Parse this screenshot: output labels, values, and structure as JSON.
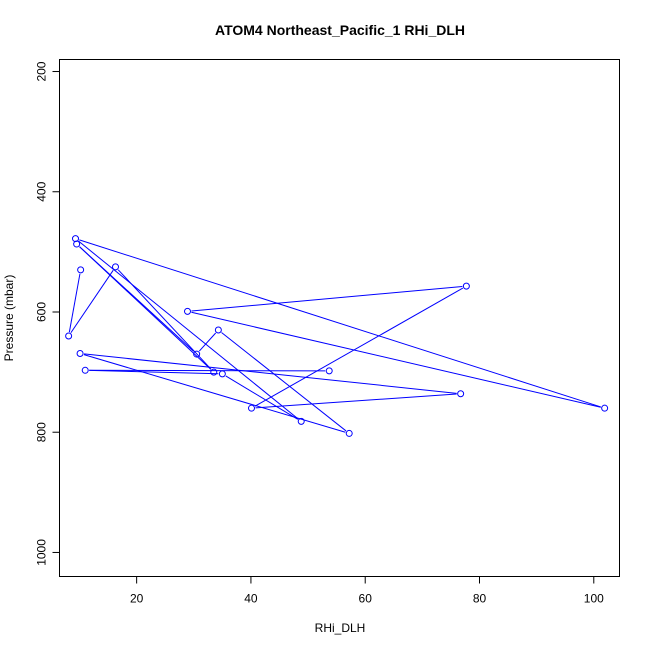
{
  "chart_data": {
    "type": "line",
    "title": "ATOM4 Northeast_Pacific_1 RHi_DLH",
    "xlabel": "RHi_DLH",
    "ylabel": "Pressure (mbar)",
    "xlim": [
      6.5,
      104.5
    ],
    "ylim": [
      1040,
      180
    ],
    "y_reversed": true,
    "x_ticks": [
      20,
      40,
      60,
      80,
      100
    ],
    "y_ticks": [
      200,
      400,
      600,
      800,
      1000
    ],
    "grid": false,
    "legend": "none",
    "color": "#0000ff",
    "series": [
      {
        "x": [
          10.2,
          8.1,
          16.3,
          33.5,
          9.5,
          30.5,
          34.3,
          57.2,
          10.1,
          76.7,
          40.1,
          77.7,
          28.9,
          101.9,
          9.3,
          48.8,
          35.0,
          11.0,
          53.7
        ],
        "y": [
          530,
          640,
          525,
          700,
          487,
          670,
          630,
          802,
          669,
          736,
          760,
          557,
          599,
          760,
          478,
          782,
          703,
          697,
          698
        ]
      }
    ]
  }
}
